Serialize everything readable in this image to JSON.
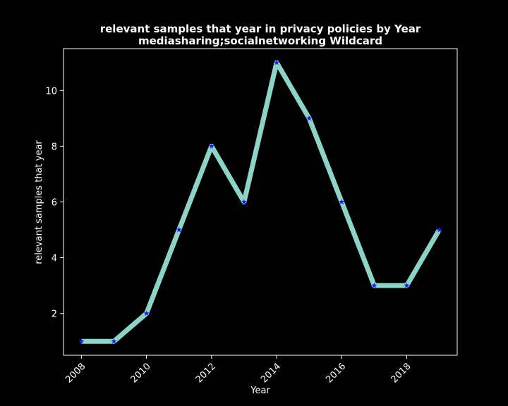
{
  "chart_data": {
    "type": "line",
    "title": "relevant samples that year in privacy policies by Year",
    "subtitle": "mediasharing;socialnetworking Wildcard",
    "xlabel": "Year",
    "ylabel": "relevant samples that year",
    "x": [
      2008,
      2009,
      2010,
      2011,
      2012,
      2013,
      2014,
      2015,
      2016,
      2017,
      2018,
      2019
    ],
    "series": [
      {
        "values": [
          1,
          1,
          2,
          5,
          8,
          6,
          11,
          9,
          6,
          3,
          3,
          5
        ]
      }
    ],
    "xticks": [
      "2008",
      "2010",
      "2012",
      "2014",
      "2016",
      "2018"
    ],
    "yticks": [
      "2",
      "4",
      "6",
      "8",
      "10"
    ],
    "xlim": [
      2007.45,
      2019.55
    ],
    "ylim": [
      0.5,
      11.5
    ],
    "grid": false,
    "line_color": "#8dd3c7",
    "marker_color": "#1a1aff",
    "background": "#000000",
    "axis_color": "#ffffff"
  }
}
